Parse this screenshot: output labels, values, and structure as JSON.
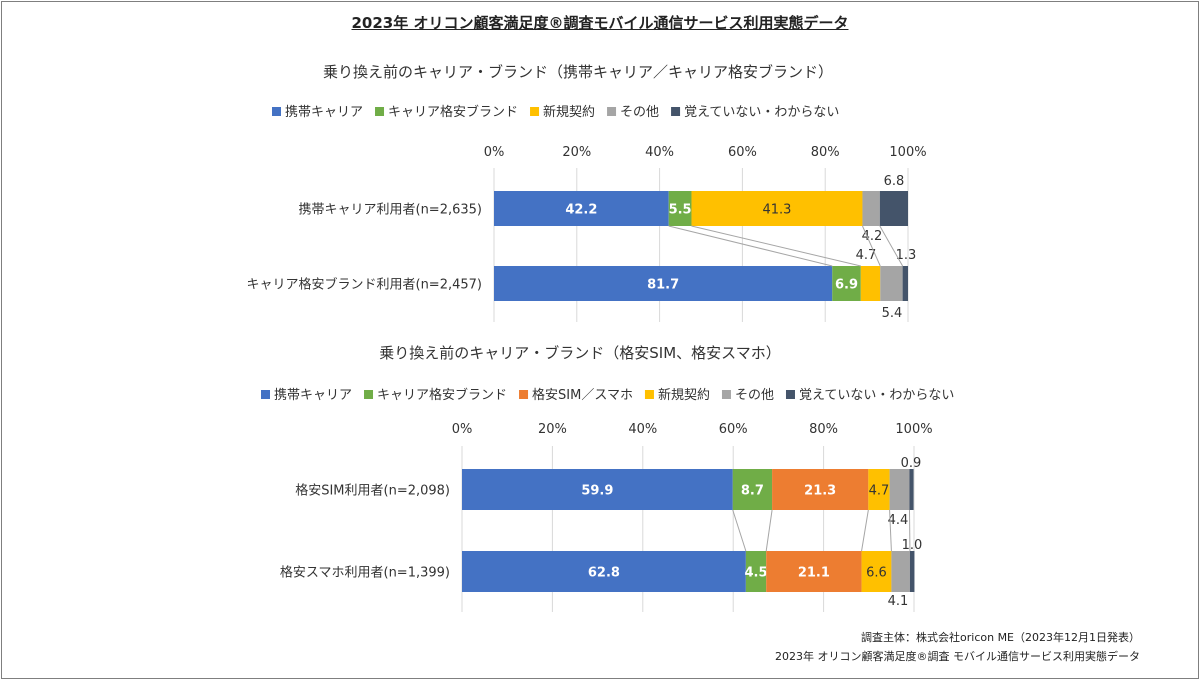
{
  "page_title": "2023年 オリコン顧客満足度®調査モバイル通信サービス利用実態データ",
  "footer": {
    "line1": "調査主体：株式会社oricon ME（2023年12月1日発表）",
    "line2": "2023年 オリコン顧客満足度®調査 モバイル通信サービス利用実態データ"
  },
  "chart_data": [
    {
      "type": "bar",
      "orientation": "horizontal-stacked-100",
      "title": "乗り換え前のキャリア・ブランド（携帯キャリア／キャリア格安ブランド）",
      "axis_ticks": [
        "0%",
        "20%",
        "40%",
        "60%",
        "80%",
        "100%"
      ],
      "xlim": [
        0,
        100
      ],
      "legend_position": "top",
      "categories": [
        "携帯キャリア利用者(n=2,635)",
        "キャリア格安ブランド利用者(n=2,457)"
      ],
      "series": [
        {
          "name": "携帯キャリア",
          "color": "#4472c4",
          "values": [
            42.2,
            81.7
          ]
        },
        {
          "name": "キャリア格安ブランド",
          "color": "#70ad47",
          "values": [
            5.5,
            6.9
          ]
        },
        {
          "name": "新規契約",
          "color": "#ffc000",
          "values": [
            41.3,
            4.7
          ]
        },
        {
          "name": "その他",
          "color": "#a5a5a5",
          "values": [
            4.2,
            5.4
          ]
        },
        {
          "name": "覚えていない・わからない",
          "color": "#44546a",
          "values": [
            6.8,
            1.3
          ]
        }
      ]
    },
    {
      "type": "bar",
      "orientation": "horizontal-stacked-100",
      "title": "乗り換え前のキャリア・ブランド（格安SIM、格安スマホ）",
      "axis_ticks": [
        "0%",
        "20%",
        "40%",
        "60%",
        "80%",
        "100%"
      ],
      "xlim": [
        0,
        100
      ],
      "legend_position": "top",
      "categories": [
        "格安SIM利用者(n=2,098)",
        "格安スマホ利用者(n=1,399)"
      ],
      "series": [
        {
          "name": "携帯キャリア",
          "color": "#4472c4",
          "values": [
            59.9,
            62.8
          ]
        },
        {
          "name": "キャリア格安ブランド",
          "color": "#70ad47",
          "values": [
            8.7,
            4.5
          ]
        },
        {
          "name": "格安SIM／スマホ",
          "color": "#ed7d31",
          "values": [
            21.3,
            21.1
          ]
        },
        {
          "name": "新規契約",
          "color": "#ffc000",
          "values": [
            4.7,
            6.6
          ]
        },
        {
          "name": "その他",
          "color": "#a5a5a5",
          "values": [
            4.4,
            4.1
          ]
        },
        {
          "name": "覚えていない・わからない",
          "color": "#44546a",
          "values": [
            0.9,
            1.0
          ]
        }
      ]
    }
  ]
}
